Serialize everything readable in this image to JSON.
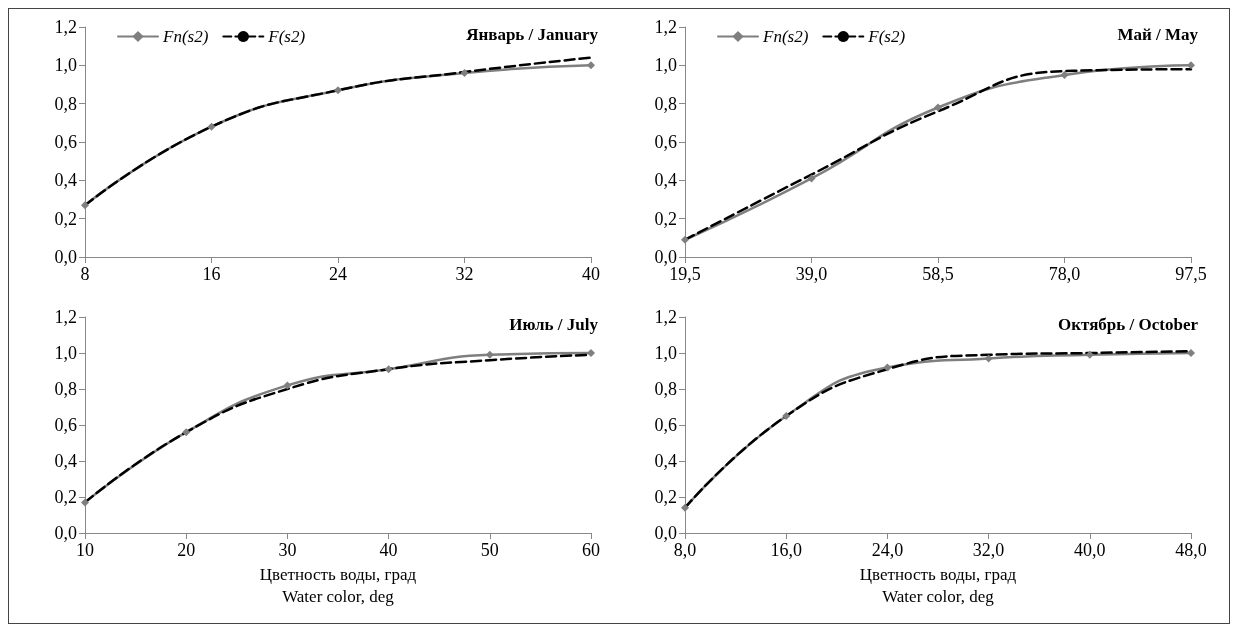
{
  "chart_data": [
    {
      "type": "line",
      "title": "Январь / January",
      "categories": [
        "8",
        "16",
        "24",
        "32",
        "40"
      ],
      "ylim": [
        0,
        1.2
      ],
      "yticks": [
        {
          "value": 0,
          "label": "0,0"
        },
        {
          "value": 0.2,
          "label": "0,2"
        },
        {
          "value": 0.4,
          "label": "0,4"
        },
        {
          "value": 0.6,
          "label": "0,6"
        },
        {
          "value": 0.8,
          "label": "0,8"
        },
        {
          "value": 1,
          "label": "1,0"
        },
        {
          "value": 1.2,
          "label": "1,2"
        }
      ],
      "grid": false,
      "legend": "top left",
      "series": [
        {
          "name": "Fn(s2)",
          "color": "#7f7f7f",
          "marker": "diamond",
          "line_style": "solid",
          "values": [
            0.27,
            0.68,
            0.87,
            0.96,
            1.0
          ]
        },
        {
          "name": "F(s2)",
          "color": "#000000",
          "marker": "none",
          "line_style": "dashed",
          "values": [
            0.27,
            0.68,
            0.87,
            0.965,
            1.04
          ]
        }
      ]
    },
    {
      "type": "line",
      "title": "Май / May",
      "categories": [
        "19,5",
        "39,0",
        "58,5",
        "78,0",
        "97,5"
      ],
      "ylim": [
        0,
        1.2
      ],
      "yticks": [
        {
          "value": 0,
          "label": "0,0"
        },
        {
          "value": 0.2,
          "label": "0,2"
        },
        {
          "value": 0.4,
          "label": "0,4"
        },
        {
          "value": 0.6,
          "label": "0,6"
        },
        {
          "value": 0.8,
          "label": "0,8"
        },
        {
          "value": 1,
          "label": "1,0"
        },
        {
          "value": 1.2,
          "label": "1,2"
        }
      ],
      "grid": false,
      "legend": "top left",
      "series": [
        {
          "name": "Fn(s2)",
          "color": "#7f7f7f",
          "marker": "diamond",
          "line_style": "solid",
          "values": [
            0.09,
            0.41,
            0.78,
            0.95,
            1.0
          ]
        },
        {
          "name": "F(s2)",
          "color": "#000000",
          "marker": "none",
          "line_style": "dashed",
          "values": [
            0.09,
            0.43,
            0.76,
            0.97,
            0.98
          ]
        }
      ]
    },
    {
      "type": "line",
      "title": "Июль / July",
      "xlabel": "Цветность воды, град\nWater color, deg",
      "categories": [
        "10",
        "20",
        "30",
        "40",
        "50",
        "60"
      ],
      "ylim": [
        0,
        1.2
      ],
      "yticks": [
        {
          "value": 0,
          "label": "0,0"
        },
        {
          "value": 0.2,
          "label": "0,2"
        },
        {
          "value": 0.4,
          "label": "0,4"
        },
        {
          "value": 0.6,
          "label": "0,6"
        },
        {
          "value": 0.8,
          "label": "0,8"
        },
        {
          "value": 1,
          "label": "1,0"
        },
        {
          "value": 1.2,
          "label": "1,2"
        }
      ],
      "grid": false,
      "series": [
        {
          "color": "#7f7f7f",
          "marker": "diamond",
          "line_style": "solid",
          "values": [
            0.17,
            0.56,
            0.82,
            0.91,
            0.99,
            1.0
          ]
        },
        {
          "color": "#000000",
          "marker": "none",
          "line_style": "dashed",
          "values": [
            0.17,
            0.56,
            0.8,
            0.91,
            0.96,
            0.99
          ]
        }
      ]
    },
    {
      "type": "line",
      "title": "Октябрь / October",
      "xlabel": "Цветность воды, град\nWater color, deg",
      "categories": [
        "8,0",
        "16,0",
        "24,0",
        "32,0",
        "40,0",
        "48,0"
      ],
      "ylim": [
        0,
        1.2
      ],
      "yticks": [
        {
          "value": 0,
          "label": "0,0"
        },
        {
          "value": 0.2,
          "label": "0,2"
        },
        {
          "value": 0.4,
          "label": "0,4"
        },
        {
          "value": 0.6,
          "label": "0,6"
        },
        {
          "value": 0.8,
          "label": "0,8"
        },
        {
          "value": 1,
          "label": "1,0"
        },
        {
          "value": 1.2,
          "label": "1,2"
        }
      ],
      "grid": false,
      "series": [
        {
          "color": "#7f7f7f",
          "marker": "diamond",
          "line_style": "solid",
          "values": [
            0.14,
            0.65,
            0.92,
            0.97,
            0.99,
            1.0
          ]
        },
        {
          "color": "#000000",
          "marker": "none",
          "line_style": "dashed",
          "values": [
            0.14,
            0.65,
            0.91,
            0.99,
            1.0,
            1.01
          ]
        }
      ]
    }
  ]
}
